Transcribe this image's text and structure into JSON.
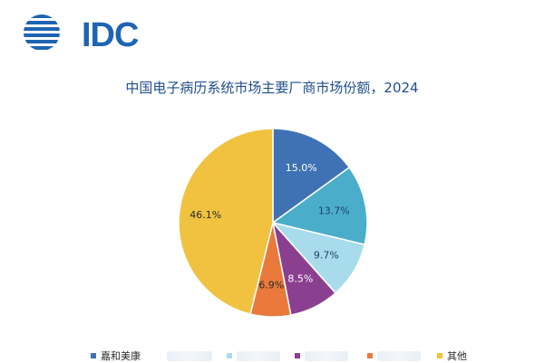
{
  "logo": {
    "text": "IDC",
    "color": "#1f64b3"
  },
  "chart_data": {
    "type": "pie",
    "title": "中国电子病历系统市场主要厂商市场份额，2024",
    "slices": [
      {
        "label": "嘉和美康",
        "value": 15.0,
        "display": "15.0%",
        "color": "#3f72b4"
      },
      {
        "label": "",
        "value": 13.7,
        "display": "13.7%",
        "color": "#4aaecb"
      },
      {
        "label": "",
        "value": 9.7,
        "display": "9.7%",
        "color": "#a8dced"
      },
      {
        "label": "",
        "value": 8.5,
        "display": "8.5%",
        "color": "#8b3f8f"
      },
      {
        "label": "",
        "value": 6.9,
        "display": "6.9%",
        "color": "#e97a3b"
      },
      {
        "label": "其他",
        "value": 46.1,
        "display": "46.1%",
        "color": "#f0c23f"
      }
    ],
    "start_angle": "12 o'clock",
    "direction": "clockwise",
    "legend_position": "bottom"
  }
}
